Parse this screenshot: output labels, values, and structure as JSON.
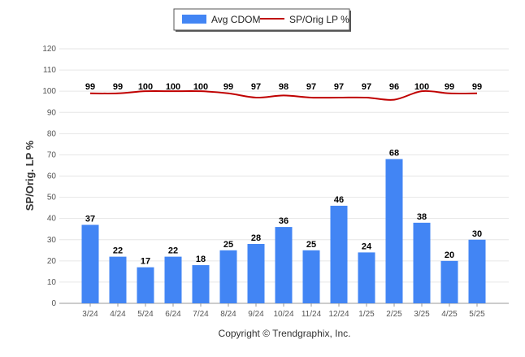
{
  "chart_data": {
    "type": "bar",
    "categories": [
      "3/24",
      "4/24",
      "5/24",
      "6/24",
      "7/24",
      "8/24",
      "9/24",
      "10/24",
      "11/24",
      "12/24",
      "1/25",
      "2/25",
      "3/25",
      "4/25",
      "5/25"
    ],
    "series": [
      {
        "name": "Avg CDOM",
        "type": "bar",
        "color": "#4285f4",
        "values": [
          37,
          22,
          17,
          22,
          18,
          25,
          28,
          36,
          25,
          46,
          24,
          68,
          38,
          20,
          30
        ]
      },
      {
        "name": "SP/Orig LP %",
        "type": "line",
        "color": "#c00000",
        "values": [
          99,
          99,
          100,
          100,
          100,
          99,
          97,
          98,
          97,
          97,
          97,
          96,
          100,
          99,
          99
        ]
      }
    ],
    "ylabel": "SP/Orig. LP %",
    "yticks": [
      0,
      10,
      20,
      30,
      40,
      50,
      60,
      70,
      80,
      90,
      100,
      110,
      120
    ],
    "ylim": [
      0,
      120
    ],
    "grid": true,
    "legend_position": "top-center"
  },
  "footer": {
    "copyright": "Copyright © Trendgraphix, Inc."
  }
}
